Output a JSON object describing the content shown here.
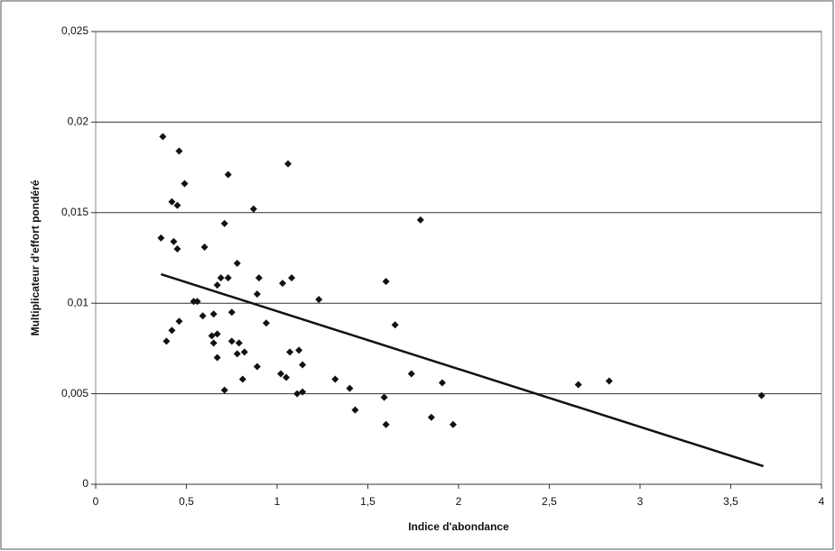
{
  "chart_data": {
    "type": "scatter",
    "xlabel": "Indice d'abondance",
    "ylabel": "Multiplicateur d'effort pondéré",
    "x": [
      0.37,
      0.46,
      0.49,
      0.73,
      1.06,
      0.42,
      0.45,
      0.87,
      0.71,
      1.79,
      0.36,
      0.43,
      0.45,
      0.6,
      0.78,
      0.69,
      0.73,
      0.9,
      1.08,
      0.67,
      1.03,
      1.6,
      0.89,
      1.23,
      0.54,
      0.56,
      0.75,
      0.59,
      0.65,
      0.46,
      0.94,
      1.65,
      0.42,
      0.64,
      0.67,
      0.65,
      0.39,
      0.75,
      0.79,
      0.78,
      0.82,
      1.07,
      1.12,
      0.67,
      1.14,
      0.89,
      1.74,
      1.02,
      1.05,
      0.81,
      1.32,
      1.91,
      2.66,
      2.83,
      0.71,
      1.4,
      1.11,
      1.14,
      1.59,
      3.67,
      1.43,
      1.85,
      1.6,
      1.97
    ],
    "values": [
      0.0192,
      0.0184,
      0.0166,
      0.0171,
      0.0177,
      0.0156,
      0.0154,
      0.0152,
      0.0144,
      0.0146,
      0.0136,
      0.0134,
      0.013,
      0.0131,
      0.0122,
      0.0114,
      0.0114,
      0.0114,
      0.0114,
      0.011,
      0.0111,
      0.0112,
      0.0105,
      0.0102,
      0.0101,
      0.0101,
      0.0095,
      0.0093,
      0.0094,
      0.009,
      0.0089,
      0.0088,
      0.0085,
      0.0082,
      0.0083,
      0.0078,
      0.0079,
      0.0079,
      0.0078,
      0.0072,
      0.0073,
      0.0073,
      0.0074,
      0.007,
      0.0066,
      0.0065,
      0.0061,
      0.0061,
      0.0059,
      0.0058,
      0.0058,
      0.0056,
      0.0055,
      0.0057,
      0.0052,
      0.0053,
      0.005,
      0.0051,
      0.0048,
      0.0049,
      0.0041,
      0.0037,
      0.0033,
      0.0033
    ],
    "color": "#111111",
    "trendline": {
      "x": [
        0.36,
        3.68
      ],
      "values": [
        0.0116,
        0.001
      ],
      "color": "#111111"
    },
    "xlim": [
      0,
      4
    ],
    "xticks": [
      0,
      {
        "value": 0.5,
        "label": "0,5"
      },
      1,
      {
        "value": 1.5,
        "label": "1,5"
      },
      2,
      {
        "value": 2.5,
        "label": "2,5"
      },
      3,
      {
        "value": 3.5,
        "label": "3,5"
      },
      4
    ],
    "ylim": [
      0,
      0.025
    ],
    "yticks": [
      0,
      {
        "value": 0.005,
        "label": "0,005"
      },
      {
        "value": 0.01,
        "label": "0,01"
      },
      {
        "value": 0.015,
        "label": "0,015"
      },
      {
        "value": 0.02,
        "label": "0,02"
      },
      {
        "value": 0.025,
        "label": "0,025"
      }
    ],
    "grid": true
  }
}
